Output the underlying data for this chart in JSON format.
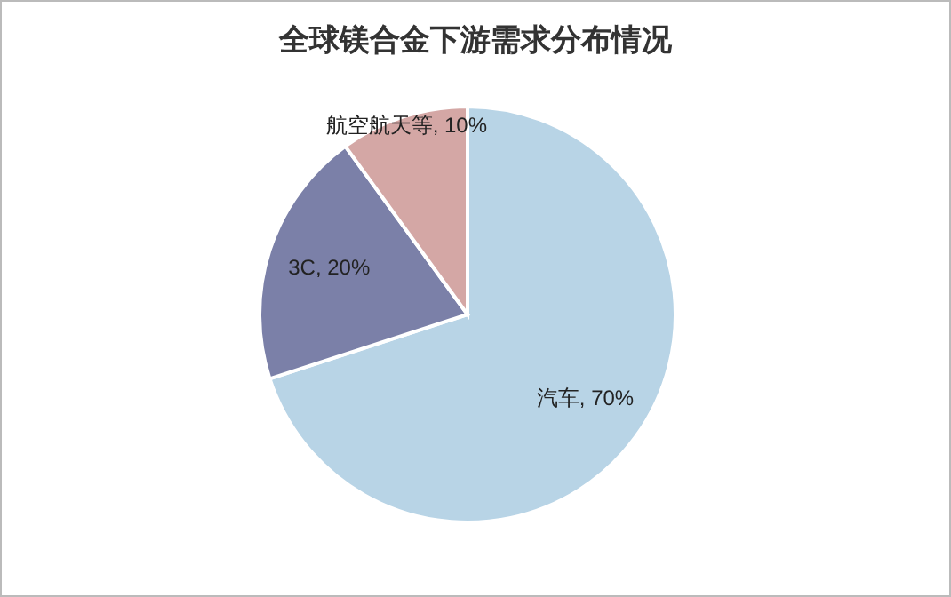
{
  "chart_data": {
    "type": "pie",
    "title": "全球镁合金下游需求分布情况",
    "categories": [
      "汽车",
      "3C",
      "航空航天等"
    ],
    "values": [
      70,
      20,
      10
    ],
    "colors": [
      "#b8d4e6",
      "#7b80a8",
      "#d4a7a5"
    ],
    "value_labels": [
      ", 70%",
      ", 20%",
      ", 10%"
    ]
  }
}
